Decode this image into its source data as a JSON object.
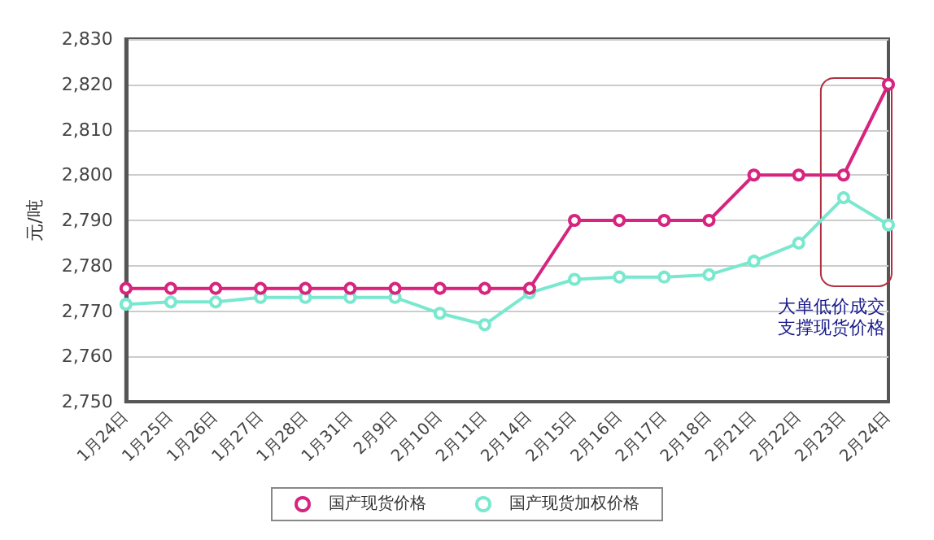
{
  "chart_data": {
    "type": "line",
    "ylabel": "元/吨",
    "categories": [
      "1月24日",
      "1月25日",
      "1月26日",
      "1月27日",
      "1月28日",
      "1月31日",
      "2月9日",
      "2月10日",
      "2月11日",
      "2月14日",
      "2月15日",
      "2月16日",
      "2月17日",
      "2月18日",
      "2月21日",
      "2月22日",
      "2月23日",
      "2月24日"
    ],
    "series": [
      {
        "name": "国产现货价格",
        "color": "#d6247f",
        "values": [
          2775,
          2775,
          2775,
          2775,
          2775,
          2775,
          2775,
          2775,
          2775,
          2775,
          2790,
          2790,
          2790,
          2790,
          2800,
          2800,
          2800,
          2820
        ]
      },
      {
        "name": "国产现货加权价格",
        "color": "#7ae8cf",
        "values": [
          2771.5,
          2772,
          2772,
          2773,
          2773,
          2773,
          2773,
          2769.5,
          2767,
          2774,
          2777,
          2777.5,
          2777.5,
          2778,
          2781,
          2785,
          2795,
          2789
        ]
      }
    ],
    "ylim": [
      2750,
      2830
    ],
    "yticks": [
      {
        "value": 2750,
        "label": "2,750"
      },
      {
        "value": 2760,
        "label": "2,760"
      },
      {
        "value": 2770,
        "label": "2,770"
      },
      {
        "value": 2780,
        "label": "2,780"
      },
      {
        "value": 2790,
        "label": "2,790"
      },
      {
        "value": 2800,
        "label": "2,800"
      },
      {
        "value": 2810,
        "label": "2,810"
      },
      {
        "value": 2820,
        "label": "2,820"
      },
      {
        "value": 2830,
        "label": "2,830"
      }
    ],
    "annotations": [
      "大单低价成交",
      "支撑现货价格"
    ],
    "grid": "y",
    "legend": "bottom",
    "marker": "circle",
    "line_style": "solid"
  }
}
